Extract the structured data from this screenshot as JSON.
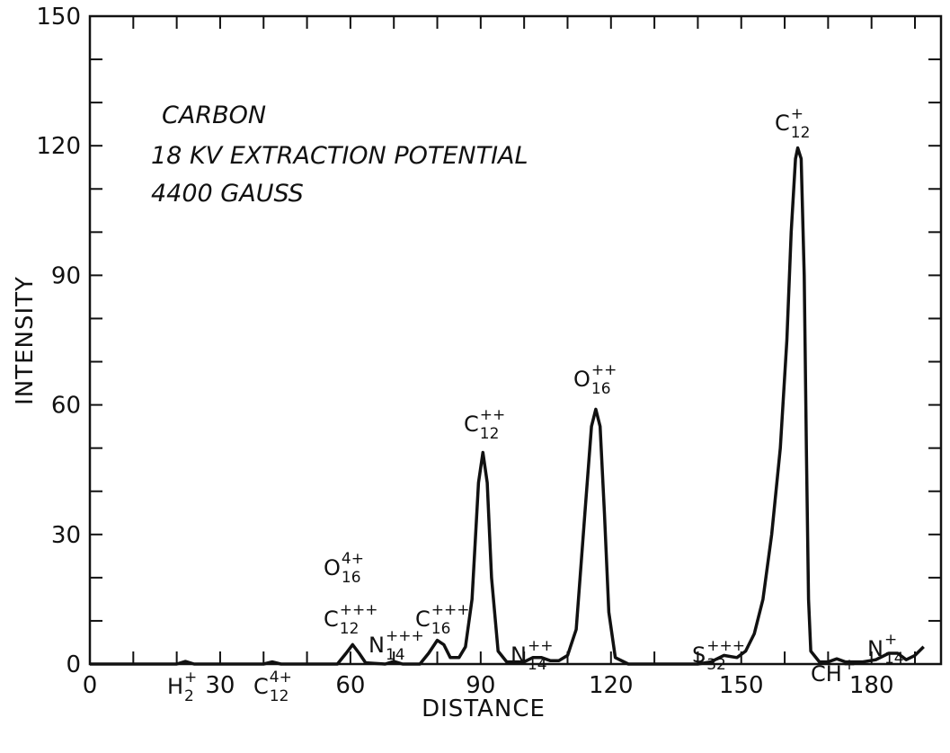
{
  "chart_data": {
    "type": "line",
    "notes": [
      "CARBON",
      "18 KV EXTRACTION POTENTIAL",
      "4400 GAUSS"
    ],
    "xlabel": "DISTANCE",
    "ylabel": "INTENSITY",
    "xlim": [
      0,
      196
    ],
    "ylim": [
      0,
      150
    ],
    "xticks": [
      0,
      30,
      60,
      90,
      120,
      150,
      180
    ],
    "yticks": [
      0,
      30,
      60,
      90,
      120,
      150
    ],
    "xminorticks": [
      10,
      20,
      40,
      50,
      70,
      80,
      100,
      110,
      130,
      140,
      160,
      170,
      190
    ],
    "yminorticks": [
      10,
      20,
      40,
      50,
      70,
      80,
      100,
      110,
      130,
      140
    ],
    "series": [
      {
        "name": "Carbon spectrum",
        "color": "#111111",
        "x": [
          0,
          20,
          22,
          24,
          40,
          42,
          44,
          57,
          59,
          60.5,
          62,
          63.5,
          68,
          70,
          72,
          76,
          78,
          80,
          81.5,
          83,
          85,
          86.5,
          88,
          89.5,
          90.5,
          91.5,
          92.5,
          94,
          96,
          100,
          102,
          104,
          106,
          108,
          110,
          112,
          114,
          115.5,
          116.5,
          117.5,
          118.5,
          119.5,
          121,
          124,
          140,
          143,
          146,
          149,
          151,
          153,
          155,
          157,
          159,
          160.5,
          161.5,
          162.5,
          163,
          163.8,
          164.5,
          165,
          165.5,
          166,
          168,
          170,
          172,
          174,
          178,
          181,
          184,
          186,
          188,
          190,
          192
        ],
        "values": [
          0,
          0,
          0.6,
          0,
          0,
          0.5,
          0,
          0,
          2.5,
          4.5,
          2.5,
          0.3,
          0,
          0.6,
          0,
          0,
          2.5,
          5.5,
          4.5,
          1.5,
          1.5,
          4,
          15,
          42,
          49,
          42,
          20,
          3,
          0.5,
          0.5,
          1.5,
          1.5,
          0.8,
          0.8,
          2,
          8,
          35,
          55,
          59,
          55,
          35,
          12,
          1.5,
          0,
          0,
          0.5,
          2,
          1.5,
          3,
          7,
          15,
          30,
          50,
          75,
          100,
          117,
          119.5,
          117,
          90,
          50,
          15,
          3,
          0.5,
          0.5,
          1.2,
          0.5,
          0.5,
          1,
          2.5,
          2.5,
          1,
          2,
          4
        ]
      }
    ],
    "annotations": [
      {
        "element": "H",
        "sub": "2",
        "sup": "+"
      },
      {
        "element": "C",
        "sub": "12",
        "sup": "4+"
      },
      {
        "element": "O",
        "sub": "16",
        "sup": "4+"
      },
      {
        "element": "C",
        "sub": "12",
        "sup": "+++"
      },
      {
        "element": "N",
        "sub": "14",
        "sup": "+++"
      },
      {
        "element": "C",
        "sub": "16",
        "sup": "+++"
      },
      {
        "element": "C",
        "sub": "12",
        "sup": "++"
      },
      {
        "element": "N",
        "sub": "14",
        "sup": "++"
      },
      {
        "element": "O",
        "sub": "16",
        "sup": "++"
      },
      {
        "element": "S",
        "sub": "32",
        "sup": "+++"
      },
      {
        "element": "C",
        "sub": "12",
        "sup": "+"
      },
      {
        "element": "CH",
        "sup": "+"
      },
      {
        "element": "N",
        "sub": "14",
        "sup": "+"
      }
    ]
  }
}
